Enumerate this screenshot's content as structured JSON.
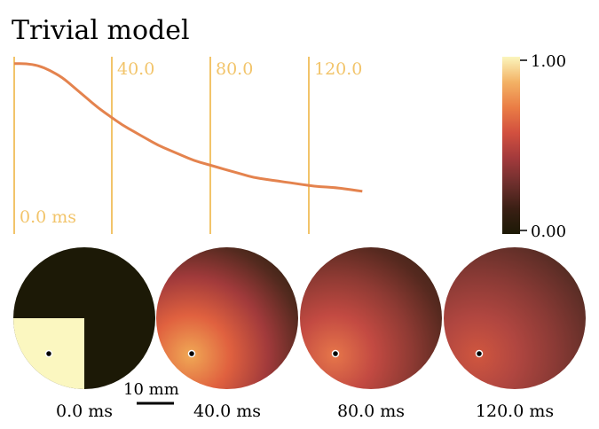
{
  "title": "Trivial model",
  "colormap": {
    "stops": [
      "#1c1906",
      "#3a1f14",
      "#6e2f2d",
      "#a33a3c",
      "#d2503f",
      "#ea7d45",
      "#f3b265",
      "#fbf5bd"
    ],
    "tick_max": "1.00",
    "tick_min": "0.00"
  },
  "trace": {
    "color": "#e4834e",
    "t_max_ms": 142,
    "values": [
      0.98,
      0.98,
      0.97,
      0.94,
      0.9,
      0.84,
      0.78,
      0.72,
      0.67,
      0.62,
      0.58,
      0.54,
      0.5,
      0.47,
      0.44,
      0.41,
      0.39,
      0.37,
      0.35,
      0.33,
      0.31,
      0.3,
      0.29,
      0.28,
      0.27,
      0.26,
      0.255,
      0.25,
      0.24,
      0.23
    ]
  },
  "time_markers": {
    "color": "#f2c46a",
    "items": [
      {
        "t": 0,
        "label": "0.0 ms"
      },
      {
        "t": 40,
        "label": "40.0"
      },
      {
        "t": 80,
        "label": "80.0"
      },
      {
        "t": 120,
        "label": "120.0"
      }
    ]
  },
  "discs": [
    {
      "label": "0.0 ms",
      "background": "#1c1906",
      "quadrant": "#fbf7c0"
    },
    {
      "label": "40.0 ms",
      "gradient": [
        "#f0a855",
        "#e0613f",
        "#a13a3b",
        "#542a1f",
        "#2a1f0e"
      ]
    },
    {
      "label": "80.0 ms",
      "gradient": [
        "#e6764a",
        "#c34a42",
        "#8e3a33",
        "#56291f",
        "#3a2416"
      ]
    },
    {
      "label": "120.0 ms",
      "gradient": [
        "#d0563f",
        "#b04640",
        "#8a3a35",
        "#622f28",
        "#3f281b"
      ]
    }
  ],
  "scale_bar": {
    "label": "10 mm"
  }
}
